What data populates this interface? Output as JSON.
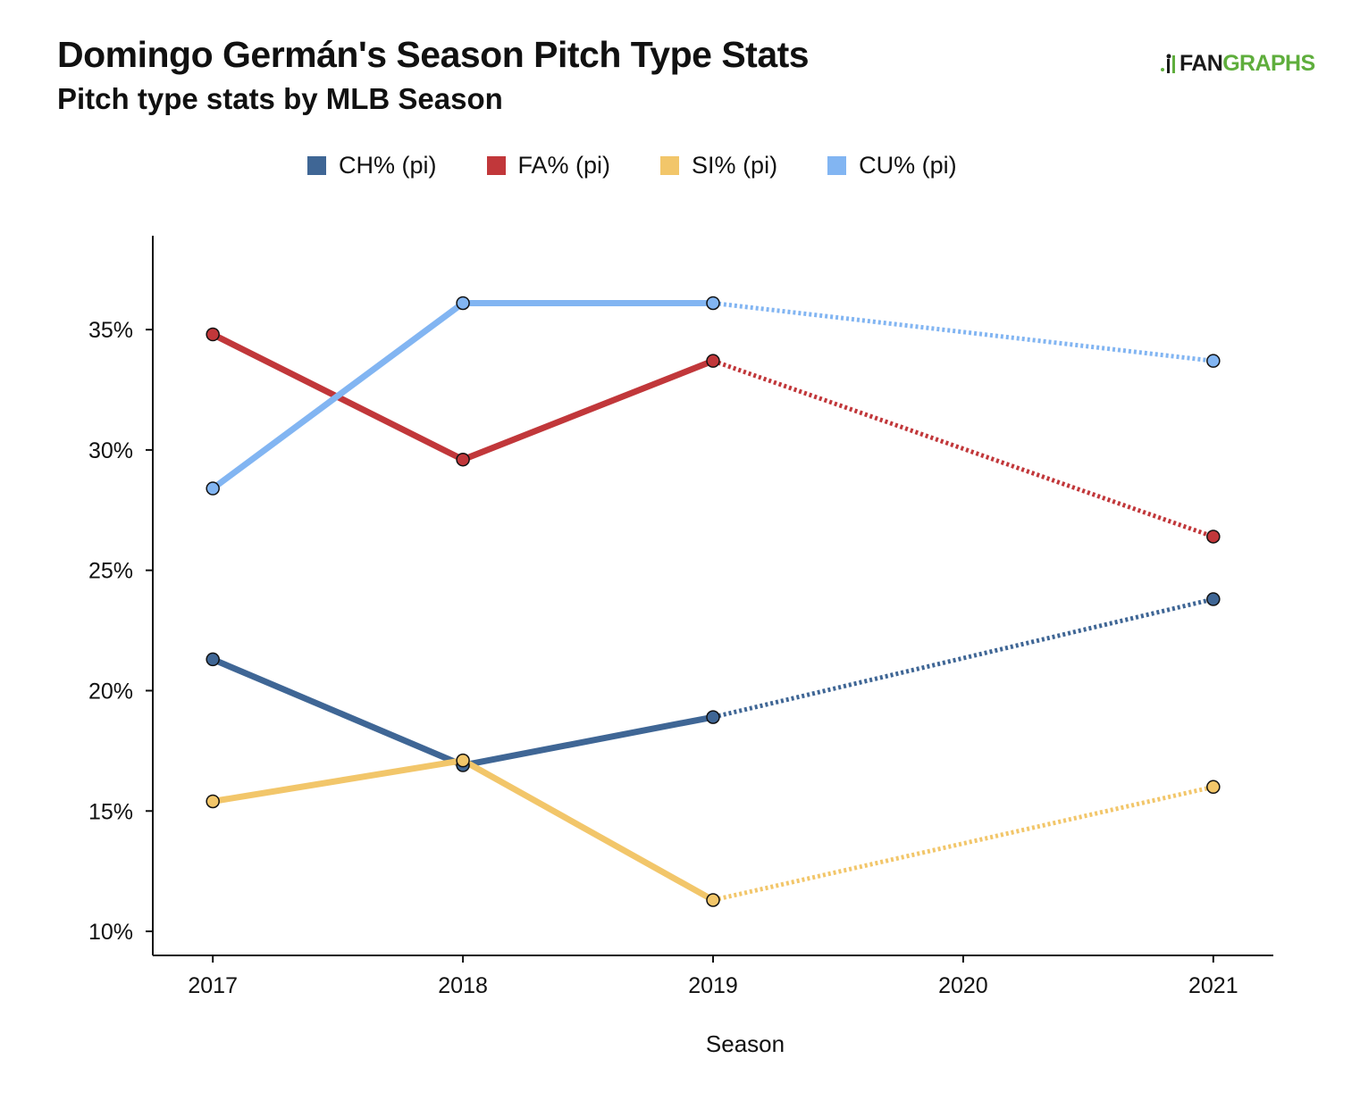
{
  "header": {
    "title": "Domingo Germán's Season Pitch Type Stats",
    "subtitle": "Pitch type stats by MLB Season"
  },
  "logo": {
    "text_prefix": "FAN",
    "text_suffix": "GRAPHS",
    "colors": {
      "prefix": "#1a1a1a",
      "suffix": "#5fae3d"
    }
  },
  "chart_data": {
    "type": "line",
    "title": "Domingo Germán's Season Pitch Type Stats",
    "subtitle": "Pitch type stats by MLB Season",
    "xlabel": "Season",
    "ylabel": "",
    "x": [
      2017,
      2018,
      2019,
      2020,
      2021
    ],
    "xlim": [
      2016.76,
      2021.24
    ],
    "ylim": [
      9.0,
      38.9
    ],
    "y_ticks": [
      10,
      15,
      20,
      25,
      30,
      35
    ],
    "y_tick_labels": [
      "10%",
      "15%",
      "20%",
      "25%",
      "30%",
      "35%"
    ],
    "x_tick_labels": [
      "2017",
      "2018",
      "2019",
      "2020",
      "2021"
    ],
    "grid": false,
    "legend_position": "top-center",
    "gap_style": "dotted line bridges the missing 2020 season",
    "series": [
      {
        "name": "CH% (pi)",
        "color": "#3f6695",
        "points": [
          {
            "x": 2017,
            "y": 21.3
          },
          {
            "x": 2018,
            "y": 16.9
          },
          {
            "x": 2019,
            "y": 18.9
          },
          {
            "x": 2021,
            "y": 23.8
          }
        ]
      },
      {
        "name": "FA% (pi)",
        "color": "#c1373a",
        "points": [
          {
            "x": 2017,
            "y": 34.8
          },
          {
            "x": 2018,
            "y": 29.6
          },
          {
            "x": 2019,
            "y": 33.7
          },
          {
            "x": 2021,
            "y": 26.4
          }
        ]
      },
      {
        "name": "SI% (pi)",
        "color": "#f2c66a",
        "points": [
          {
            "x": 2017,
            "y": 15.4
          },
          {
            "x": 2018,
            "y": 17.1
          },
          {
            "x": 2019,
            "y": 11.3
          },
          {
            "x": 2021,
            "y": 16.0
          }
        ]
      },
      {
        "name": "CU% (pi)",
        "color": "#82b5f2",
        "points": [
          {
            "x": 2017,
            "y": 28.4
          },
          {
            "x": 2018,
            "y": 36.1
          },
          {
            "x": 2019,
            "y": 36.1
          },
          {
            "x": 2021,
            "y": 33.7
          }
        ]
      }
    ]
  }
}
